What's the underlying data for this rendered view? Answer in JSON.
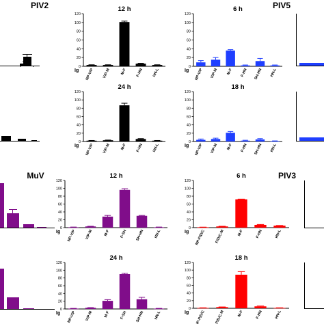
{
  "virus_labels": {
    "piv2": "PIV2",
    "piv5": "PIV5",
    "muv": "MuV",
    "piv3": "PIV3"
  },
  "chart_data": [
    {
      "id": "piv2-12h",
      "type": "bar",
      "title": "12 h",
      "color": "#000000",
      "categories": [
        "NP-V/P",
        "V/P-M",
        "M-F",
        "F-HN",
        "HN-L"
      ],
      "values": [
        3,
        3,
        101,
        6,
        3
      ],
      "errors": [
        0.5,
        0.5,
        2,
        1,
        0.5
      ],
      "ylim": [
        0,
        120
      ],
      "yticks": [
        0,
        20,
        40,
        60,
        80,
        100,
        120
      ],
      "ylabel": "Ig"
    },
    {
      "id": "piv2-24h",
      "type": "bar",
      "title": "24 h",
      "color": "#000000",
      "categories": [
        "NP-V/P",
        "V/P-M",
        "M-F",
        "F-HN",
        "HN-L"
      ],
      "values": [
        2,
        3,
        87,
        6,
        2
      ],
      "errors": [
        0.5,
        0.5,
        5,
        1,
        0.5
      ],
      "ylim": [
        0,
        120
      ],
      "yticks": [
        0,
        20,
        40,
        60,
        80,
        100,
        120
      ],
      "ylabel": "Ig"
    },
    {
      "id": "piv5-6h",
      "type": "bar",
      "title": "6 h",
      "color": "#1f3fff",
      "categories": [
        "NP-V/P",
        "V/P-M",
        "M-F",
        "F-HN",
        "SH-HN",
        "HN-L"
      ],
      "values": [
        9,
        15,
        36,
        2,
        12,
        2
      ],
      "errors": [
        4,
        5,
        2,
        1,
        6,
        1
      ],
      "ylim": [
        0,
        120
      ],
      "yticks": [
        0,
        20,
        40,
        60,
        80,
        100,
        120
      ],
      "ylabel": "Ig"
    },
    {
      "id": "piv5-18h",
      "type": "bar",
      "title": "18 h",
      "color": "#1f3fff",
      "categories": [
        "NP-V/P",
        "V/P-M",
        "M-F",
        "F-HN",
        "SH-HN",
        "HN-L"
      ],
      "values": [
        4,
        6,
        21,
        2,
        5,
        1
      ],
      "errors": [
        2,
        2,
        3,
        1,
        2,
        0.5
      ],
      "ylim": [
        0,
        120
      ],
      "yticks": [
        0,
        20,
        40,
        60,
        80,
        100,
        120
      ],
      "ylabel": "Ig"
    },
    {
      "id": "muv-12h",
      "type": "bar",
      "title": "12 h",
      "color": "#800d8a",
      "categories": [
        "NP-V/P",
        "V/P-M",
        "M-F",
        "F-SH",
        "SH-HN",
        "HN-L"
      ],
      "values": [
        1,
        3,
        28,
        96,
        30,
        1
      ],
      "errors": [
        0.5,
        0.5,
        3,
        3,
        1,
        0.5
      ],
      "ylim": [
        0,
        120
      ],
      "yticks": [
        0,
        20,
        40,
        60,
        80,
        100,
        120
      ],
      "ylabel": "Ig"
    },
    {
      "id": "muv-24h",
      "type": "bar",
      "title": "24 h",
      "color": "#800d8a",
      "categories": [
        "NP-V/P",
        "V/P-M",
        "M-F",
        "F-SH",
        "SH-HN",
        "HN-L"
      ],
      "values": [
        1,
        3,
        21,
        90,
        25,
        1
      ],
      "errors": [
        0.5,
        0.5,
        3,
        2,
        5,
        0.5
      ],
      "ylim": [
        0,
        120
      ],
      "yticks": [
        0,
        20,
        40,
        60,
        80,
        100,
        120
      ],
      "ylabel": "Ig"
    },
    {
      "id": "piv3-6h",
      "type": "bar",
      "title": "6 h",
      "color": "#ff0000",
      "categories": [
        "NP-P/D/C",
        "P/D/C-M",
        "M-F",
        "F-HN",
        "HN-L"
      ],
      "values": [
        1,
        3,
        72,
        7,
        5
      ],
      "errors": [
        0.3,
        0.5,
        0.5,
        1,
        0.5
      ],
      "ylim": [
        0,
        120
      ],
      "yticks": [
        0,
        20,
        40,
        60,
        80,
        100,
        120
      ],
      "ylabel": "Ig"
    },
    {
      "id": "piv3-18h",
      "type": "bar",
      "title": "18 h",
      "color": "#ff0000",
      "categories": [
        "NP-P/D/C",
        "P/D/C-M",
        "M-F",
        "F-HN",
        "HN-L"
      ],
      "values": [
        1,
        3,
        88,
        5,
        1
      ],
      "errors": [
        0.3,
        0.5,
        8,
        1,
        0.3
      ],
      "ylim": [
        0,
        120
      ],
      "yticks": [
        0,
        20,
        40,
        60,
        80,
        100,
        120
      ],
      "ylabel": "Ig"
    }
  ]
}
